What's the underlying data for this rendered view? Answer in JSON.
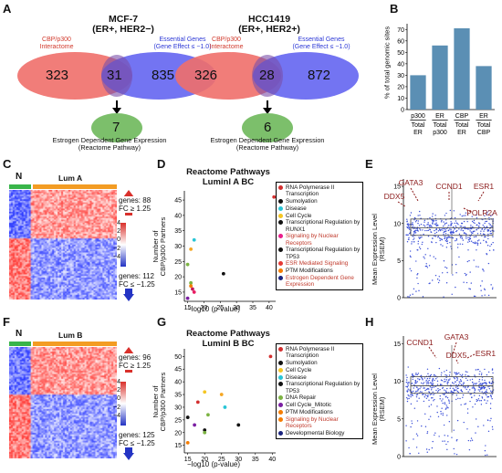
{
  "panels": {
    "a": "A",
    "b": "B",
    "c": "C",
    "d": "D",
    "e": "E",
    "f": "F",
    "g": "G",
    "h": "H"
  },
  "venn_left": {
    "title1": "MCF-7",
    "title2": "(ER+, HER2−)",
    "label_left1": "CBP/p300",
    "label_left2": "Interactome",
    "label_right1": "Essential Genes",
    "label_right2": "(Gene Effect ≤ −1.0)",
    "n_left": "323",
    "n_mid": "31",
    "n_right": "835",
    "n_bottom": "7"
  },
  "venn_right": {
    "title1": "HCC1419",
    "title2": "(ER+, HER2+)",
    "label_left1": "CBP/p300",
    "label_left2": "Interactome",
    "label_right1": "Essential Genes",
    "label_right2": "(Gene Effect ≤ −1.0)",
    "n_left": "326",
    "n_mid": "28",
    "n_right": "872",
    "n_bottom": "6"
  },
  "pathway_label1": "Estrogen Dependent Gene Expression",
  "pathway_label2": "(Reactome Pathway)",
  "heatmap_c": {
    "tag_n": "N",
    "tag_lum": "Lum A",
    "scale": [
      "4",
      "2",
      "0",
      "−2",
      "−4"
    ],
    "up1": "genes: 88",
    "up2": "FC ≥ 1.25",
    "down1": "genes: 112",
    "down2": "FC ≤ −1.25"
  },
  "heatmap_f": {
    "tag_n": "N",
    "tag_lum": "Lum B",
    "scale": [
      "4",
      "2",
      "0",
      "−2",
      "−4"
    ],
    "up1": "genes: 96",
    "up2": "FC ≥ 1.25",
    "down1": "genes: 125",
    "down2": "FC ≤ −1.25"
  },
  "colors": {
    "red": "#ef5a5a",
    "blue": "#4a55e8",
    "green": "#6cbb6a",
    "bar": "#5b8fb4",
    "heat_hi": "#d9302b",
    "heat_lo": "#2434c4"
  },
  "chart_data": [
    {
      "type": "bar",
      "ylabel": "% of total genomic sites",
      "ylim": [
        0,
        75
      ],
      "yticks": [
        0,
        10,
        20,
        30,
        40,
        50,
        60,
        70
      ],
      "categories": [
        [
          "p300",
          "Total",
          "ER"
        ],
        [
          "ER",
          "Total",
          "p300"
        ],
        [
          "CBP",
          "Total",
          "ER"
        ],
        [
          "ER",
          "Total",
          "CBP"
        ]
      ],
      "values": [
        30,
        56,
        71,
        38
      ]
    },
    {
      "type": "scatter",
      "title1": "Reactome Pathways",
      "title2": "Luminl A BC",
      "xlabel": "−log10 (p-value)",
      "ylabel1": "Number of",
      "ylabel2": "CBP/p300 Partners",
      "xlim": [
        14,
        42
      ],
      "xticks": [
        15,
        20,
        25,
        30,
        35,
        40
      ],
      "yticks": [
        15,
        20,
        25,
        30,
        35,
        40,
        45
      ],
      "ylim": [
        12,
        48
      ],
      "points": [
        [
          41.5,
          46,
          "#d32f2f"
        ],
        [
          17,
          32,
          "#29c5d6"
        ],
        [
          16,
          29,
          "#f5a623"
        ],
        [
          15,
          24,
          "#7cb342"
        ],
        [
          26,
          21,
          "#111111"
        ],
        [
          16,
          18,
          "#7cb342"
        ],
        [
          16.5,
          16,
          "#c2185b"
        ],
        [
          17,
          15,
          "#e91e63"
        ],
        [
          15,
          13,
          "#7b1fa2"
        ],
        [
          16,
          17,
          "#f57c00"
        ]
      ],
      "legend": [
        {
          "label": "RNA Polymerase II Transcription",
          "color": "#d32f2f",
          "text": "#111"
        },
        {
          "label": "Sumolyation",
          "color": "#111111",
          "text": "#111"
        },
        {
          "label": "Disease",
          "color": "#29c5d6",
          "text": "#111"
        },
        {
          "label": "Cell Cycle",
          "color": "#f5c623",
          "text": "#111"
        },
        {
          "label": "Transcriptional Regulation by RUNX1",
          "color": "#111111",
          "text": "#111"
        },
        {
          "label": "Signaling by Nuclear Receptors",
          "color": "#e91e8c",
          "text": "#c0392b"
        },
        {
          "label": "Transcriptional Regulation by TP53",
          "color": "#111111",
          "text": "#111"
        },
        {
          "label": "ESR Mediated Signaling",
          "color": "#e53935",
          "text": "#c0392b"
        },
        {
          "label": "PTM Modifications",
          "color": "#f57c00",
          "text": "#111"
        },
        {
          "label": "Estrogen Dependent Gene Expression",
          "color": "#1a237e",
          "text": "#c0392b"
        }
      ]
    },
    {
      "type": "scatter",
      "ylabel1": "Mean Expression Level",
      "ylabel2": "(RSEM)",
      "ylim": [
        0,
        16
      ],
      "yticks": [
        0,
        5,
        10,
        15
      ],
      "labels": [
        "GATA3",
        "CCND1",
        "ESR1",
        "DDX5",
        "POLR2A"
      ]
    },
    {
      "type": "scatter",
      "title1": "Reactome Pathways",
      "title2": "Luminl B BC",
      "xlabel": "−log10 (p-value)",
      "ylabel1": "Number of",
      "ylabel2": "CBP/p300 Partners",
      "xlim": [
        14,
        41
      ],
      "xticks": [
        15,
        20,
        25,
        30,
        35,
        40
      ],
      "yticks": [
        15,
        20,
        25,
        30,
        35,
        40,
        45,
        50
      ],
      "ylim": [
        12,
        53
      ],
      "points": [
        [
          39.5,
          50,
          "#d32f2f"
        ],
        [
          25,
          35,
          "#f5a623"
        ],
        [
          26,
          30,
          "#29c5d6"
        ],
        [
          20,
          36,
          "#f5c623"
        ],
        [
          18,
          32,
          "#d32f2f"
        ],
        [
          21,
          27,
          "#7cb342"
        ],
        [
          15,
          26,
          "#111111"
        ],
        [
          17,
          23,
          "#7b1fa2"
        ],
        [
          30,
          23,
          "#111111"
        ],
        [
          20,
          21,
          "#111111"
        ],
        [
          20,
          20,
          "#7cb342"
        ],
        [
          15,
          16,
          "#f57c00"
        ]
      ],
      "legend": [
        {
          "label": "RNA Polymerase II Transcription",
          "color": "#d32f2f",
          "text": "#111"
        },
        {
          "label": "Sumolyation",
          "color": "#111111",
          "text": "#111"
        },
        {
          "label": "Cell Cycle",
          "color": "#f5c623",
          "text": "#111"
        },
        {
          "label": "Disease",
          "color": "#29c5d6",
          "text": "#111"
        },
        {
          "label": "Transcriptional Regulation by TP53",
          "color": "#111111",
          "text": "#111"
        },
        {
          "label": "DNA Repair",
          "color": "#7cb342",
          "text": "#111"
        },
        {
          "label": "Cell Cycle_Mitotic",
          "color": "#7b1fa2",
          "text": "#111"
        },
        {
          "label": "PTM Modifications",
          "color": "#f57c00",
          "text": "#111"
        },
        {
          "label": "Signaling by Nuclear Receptors",
          "color": "#f57c00",
          "text": "#c0392b"
        },
        {
          "label": "Developmental Biology",
          "color": "#1a237e",
          "text": "#111"
        }
      ]
    },
    {
      "type": "scatter",
      "ylabel1": "Mean Expression Level",
      "ylabel2": "(RSEM)",
      "ylim": [
        0,
        16
      ],
      "yticks": [
        0,
        5,
        10,
        15
      ],
      "labels": [
        "CCND1",
        "GATA3",
        "DDX5",
        "ESR1"
      ]
    }
  ]
}
